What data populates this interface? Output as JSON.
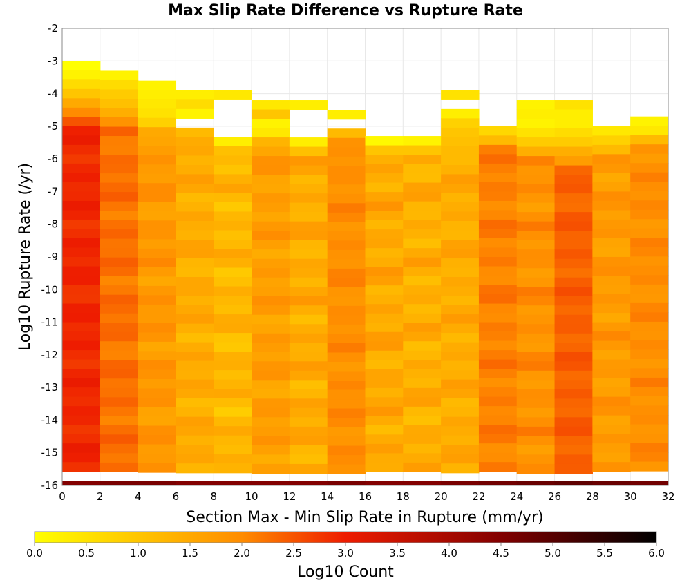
{
  "chart_data": {
    "type": "heatmap",
    "title": "Max Slip Rate Difference vs Rupture Rate",
    "xlabel": "Section Max - Min Slip Rate in Rupture (mm/yr)",
    "ylabel": "Log10 Rupture Rate (/yr)",
    "colorbar_label": "Log10 Count",
    "x_range": [
      0,
      32
    ],
    "y_range": [
      -16,
      -2
    ],
    "x_ticks": [
      "0",
      "2",
      "4",
      "6",
      "8",
      "10",
      "12",
      "14",
      "16",
      "18",
      "20",
      "22",
      "24",
      "26",
      "28",
      "30",
      "32"
    ],
    "y_ticks": [
      "-2",
      "-3",
      "-4",
      "-5",
      "-6",
      "-7",
      "-8",
      "-9",
      "-10",
      "-11",
      "-12",
      "-13",
      "-14",
      "-15",
      "-16"
    ],
    "color_range": [
      0,
      6
    ],
    "colorbar_ticks": [
      "0.0",
      "0.5",
      "1.0",
      "1.5",
      "2.0",
      "2.5",
      "3.0",
      "3.5",
      "4.0",
      "4.5",
      "5.0",
      "5.5",
      "6.0"
    ],
    "colormap": [
      "#ffff00",
      "#ff8c00",
      "#ee1c00",
      "#820000",
      "#000000"
    ],
    "grid": true,
    "x_bin_width": 2,
    "y_bin_height": 0.2857,
    "columns": [
      {
        "x_start": 0,
        "y_top": -3.0,
        "upper": [
          0.0,
          0.2,
          0.6,
          1.0,
          1.5,
          2.0,
          2.5
        ],
        "base": 2.9,
        "variation": 0.12
      },
      {
        "x_start": 2,
        "y_top": -3.3,
        "upper": [
          0.2,
          0.6,
          0.9,
          1.1,
          1.4,
          1.9
        ],
        "base": 2.25,
        "variation": 0.15
      },
      {
        "x_start": 4,
        "y_top": -3.6,
        "upper": [
          0.2,
          0.3,
          0.4,
          0.5,
          0.8,
          1.5
        ],
        "base": 1.8,
        "variation": 0.2
      },
      {
        "x_start": 6,
        "y_top": -3.9,
        "upper": [
          0.3,
          0.6,
          0.2,
          null,
          1.2
        ],
        "base": 1.45,
        "variation": 0.2
      },
      {
        "x_start": 8,
        "y_top": -3.9,
        "upper": [
          0.4,
          null,
          null,
          null,
          null,
          0.3,
          1.1
        ],
        "base": 1.25,
        "variation": 0.25
      },
      {
        "x_start": 10,
        "y_top": -4.2,
        "upper": [
          0.4,
          1.0,
          0.2,
          0.4,
          1.3
        ],
        "base": 1.7,
        "variation": 0.2
      },
      {
        "x_start": 12,
        "y_top": -4.2,
        "upper": [
          0.3,
          null,
          null,
          null,
          0.3,
          1.1
        ],
        "base": 1.45,
        "variation": 0.25
      },
      {
        "x_start": 14,
        "y_top": -4.5,
        "upper": [
          0.3,
          null,
          1.2,
          1.9
        ],
        "base": 1.95,
        "variation": 0.15
      },
      {
        "x_start": 16,
        "y_top": -5.3,
        "upper": [
          0.1,
          1.0
        ],
        "base": 1.5,
        "variation": 0.25
      },
      {
        "x_start": 18,
        "y_top": -5.3,
        "upper": [
          0.2,
          1.0
        ],
        "base": 1.4,
        "variation": 0.25
      },
      {
        "x_start": 20,
        "y_top": -3.9,
        "upper": [
          0.5,
          null,
          0.3,
          0.8,
          1.0,
          1.1,
          1.2
        ],
        "base": 1.45,
        "variation": 0.2
      },
      {
        "x_start": 22,
        "y_top": -5.0,
        "upper": [
          0.7,
          1.2
        ],
        "base": 2.1,
        "variation": 0.15
      },
      {
        "x_start": 24,
        "y_top": -4.2,
        "upper": [
          0.2,
          0.3,
          0.2,
          0.5,
          0.9,
          1.4
        ],
        "base": 1.9,
        "variation": 0.2
      },
      {
        "x_start": 26,
        "y_top": -4.2,
        "upper": [
          0.5,
          0.3,
          0.3,
          0.6,
          0.9,
          1.4,
          1.7
        ],
        "base": 2.4,
        "variation": 0.12
      },
      {
        "x_start": 28,
        "y_top": -5.0,
        "upper": [
          0.4,
          0.8,
          1.2
        ],
        "base": 1.75,
        "variation": 0.2
      },
      {
        "x_start": 30,
        "y_top": -4.7,
        "upper": [
          0.2,
          0.4,
          1.2
        ],
        "base": 1.95,
        "variation": 0.15
      }
    ],
    "bottom_row": {
      "y_start": -16,
      "values": [
        4.5,
        4.6,
        4.6,
        4.5,
        4.5,
        4.5,
        4.5,
        4.6,
        4.5,
        4.5,
        4.6,
        4.7,
        4.8,
        4.9,
        4.8,
        4.7
      ]
    }
  }
}
